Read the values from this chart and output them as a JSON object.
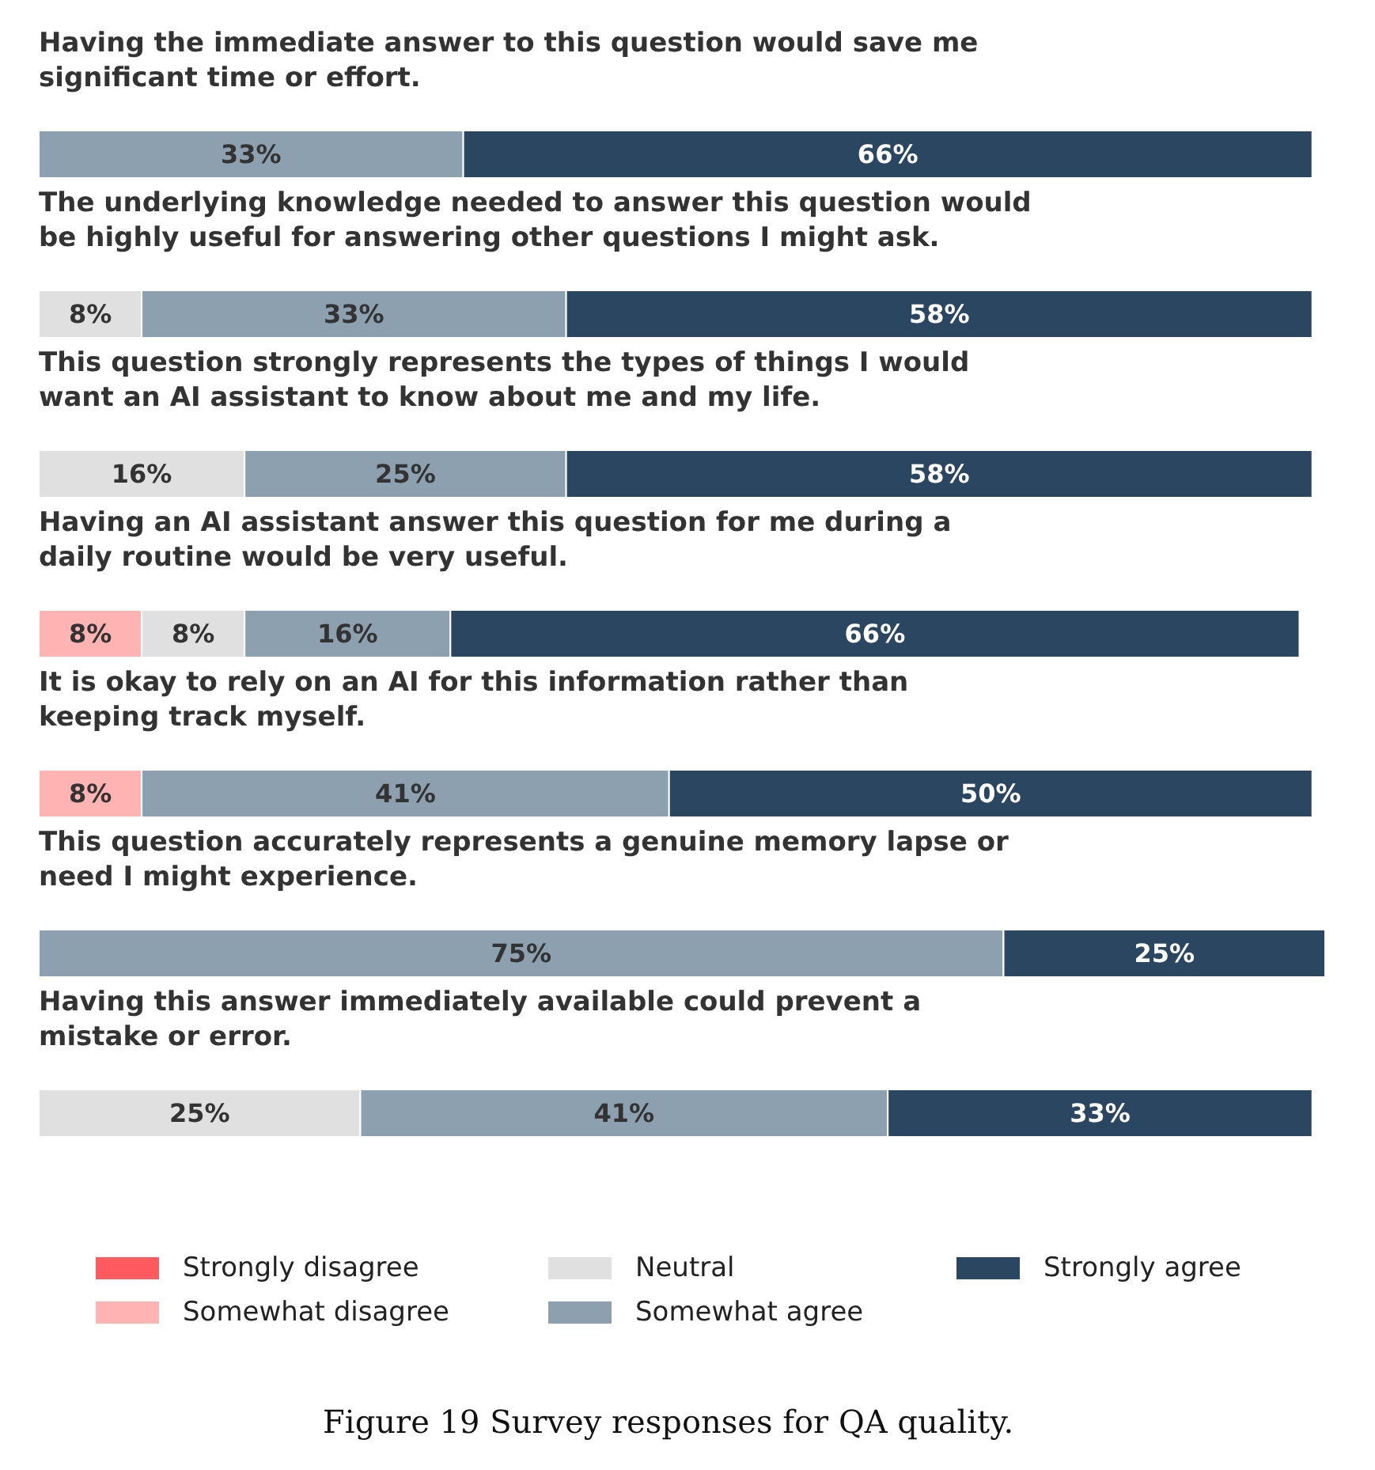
{
  "chart_data": {
    "type": "bar",
    "orientation": "horizontal",
    "stacked": true,
    "categories": [
      "Having the immediate answer to this question would save me significant time or effort.",
      "The underlying knowledge needed to answer this question would be highly useful for answering other questions I might ask.",
      "This question strongly represents the types of things I would want an AI assistant to know about me and my life.",
      "Having an AI assistant answer this question for me during a daily routine would be very useful.",
      "It is okay to rely on an AI for this information rather than keeping track myself.",
      "This question accurately represents a genuine memory lapse or need I might experience.",
      "Having this answer immediately available could prevent a mistake or error."
    ],
    "series": [
      {
        "name": "Strongly disagree",
        "color": "#ff5a5f",
        "values": [
          null,
          null,
          null,
          null,
          null,
          null,
          null
        ],
        "value_labels": [
          null,
          null,
          null,
          null,
          null,
          null,
          null
        ]
      },
      {
        "name": "Somewhat disagree",
        "color": "#ffb3b3",
        "values": [
          null,
          null,
          null,
          8,
          8,
          null,
          null
        ],
        "value_labels": [
          null,
          null,
          null,
          "8%",
          "8%",
          null,
          null
        ]
      },
      {
        "name": "Neutral",
        "color": "#e0e0e0",
        "values": [
          null,
          8,
          16,
          8,
          null,
          null,
          25
        ],
        "value_labels": [
          null,
          "8%",
          "16%",
          "8%",
          null,
          null,
          "25%"
        ]
      },
      {
        "name": "Somewhat agree",
        "color": "#8ca0b0",
        "values": [
          33,
          33,
          25,
          16,
          41,
          75,
          41
        ],
        "value_labels": [
          "33%",
          "33%",
          "25%",
          "16%",
          "41%",
          "75%",
          "41%"
        ]
      },
      {
        "name": "Strongly agree",
        "color": "#2b4660",
        "values": [
          66,
          58,
          58,
          66,
          50,
          25,
          33
        ],
        "value_labels": [
          "66%",
          "58%",
          "58%",
          "66%",
          "50%",
          "25%",
          "33%"
        ]
      }
    ],
    "tick_labels": false,
    "grid": false,
    "legend": "bottom",
    "annotations": [
      "Figure 19  Survey responses for QA quality."
    ]
  }
}
